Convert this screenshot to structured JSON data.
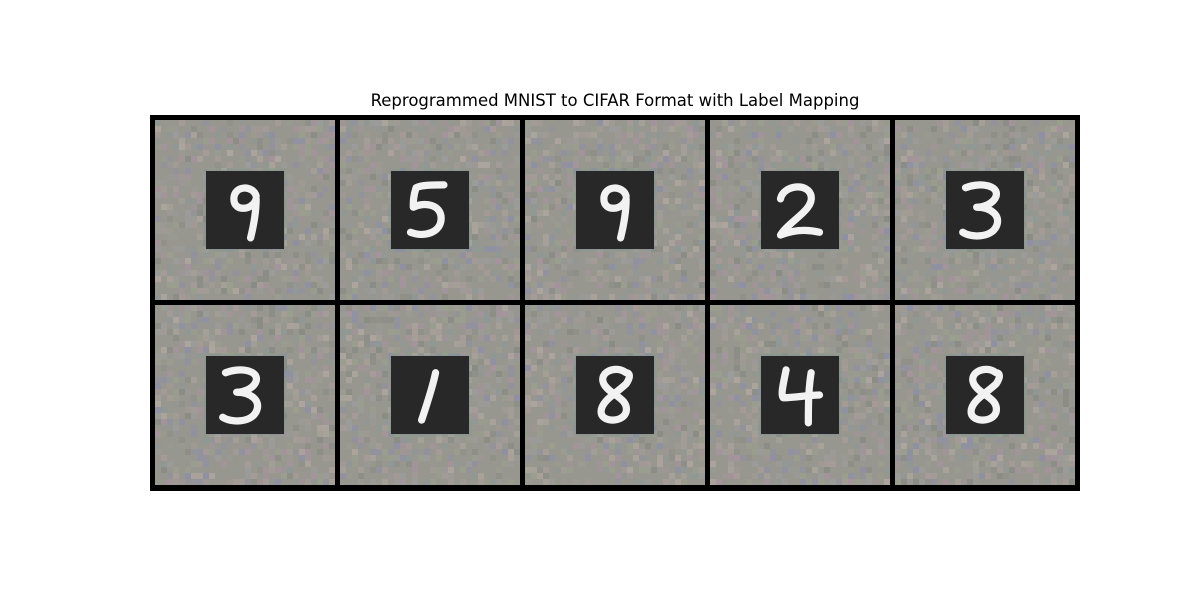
{
  "title": "Reprogrammed MNIST to CIFAR Format with Label Mapping",
  "grid": {
    "rows": 2,
    "cols": 5,
    "digits": [
      [
        9,
        5,
        9,
        2,
        3
      ],
      [
        3,
        1,
        8,
        4,
        8
      ]
    ]
  },
  "colors": {
    "border": "#000000",
    "noise_base": "#98978f",
    "digit_background": "#282828",
    "digit_stroke": "#f2f2f2"
  }
}
